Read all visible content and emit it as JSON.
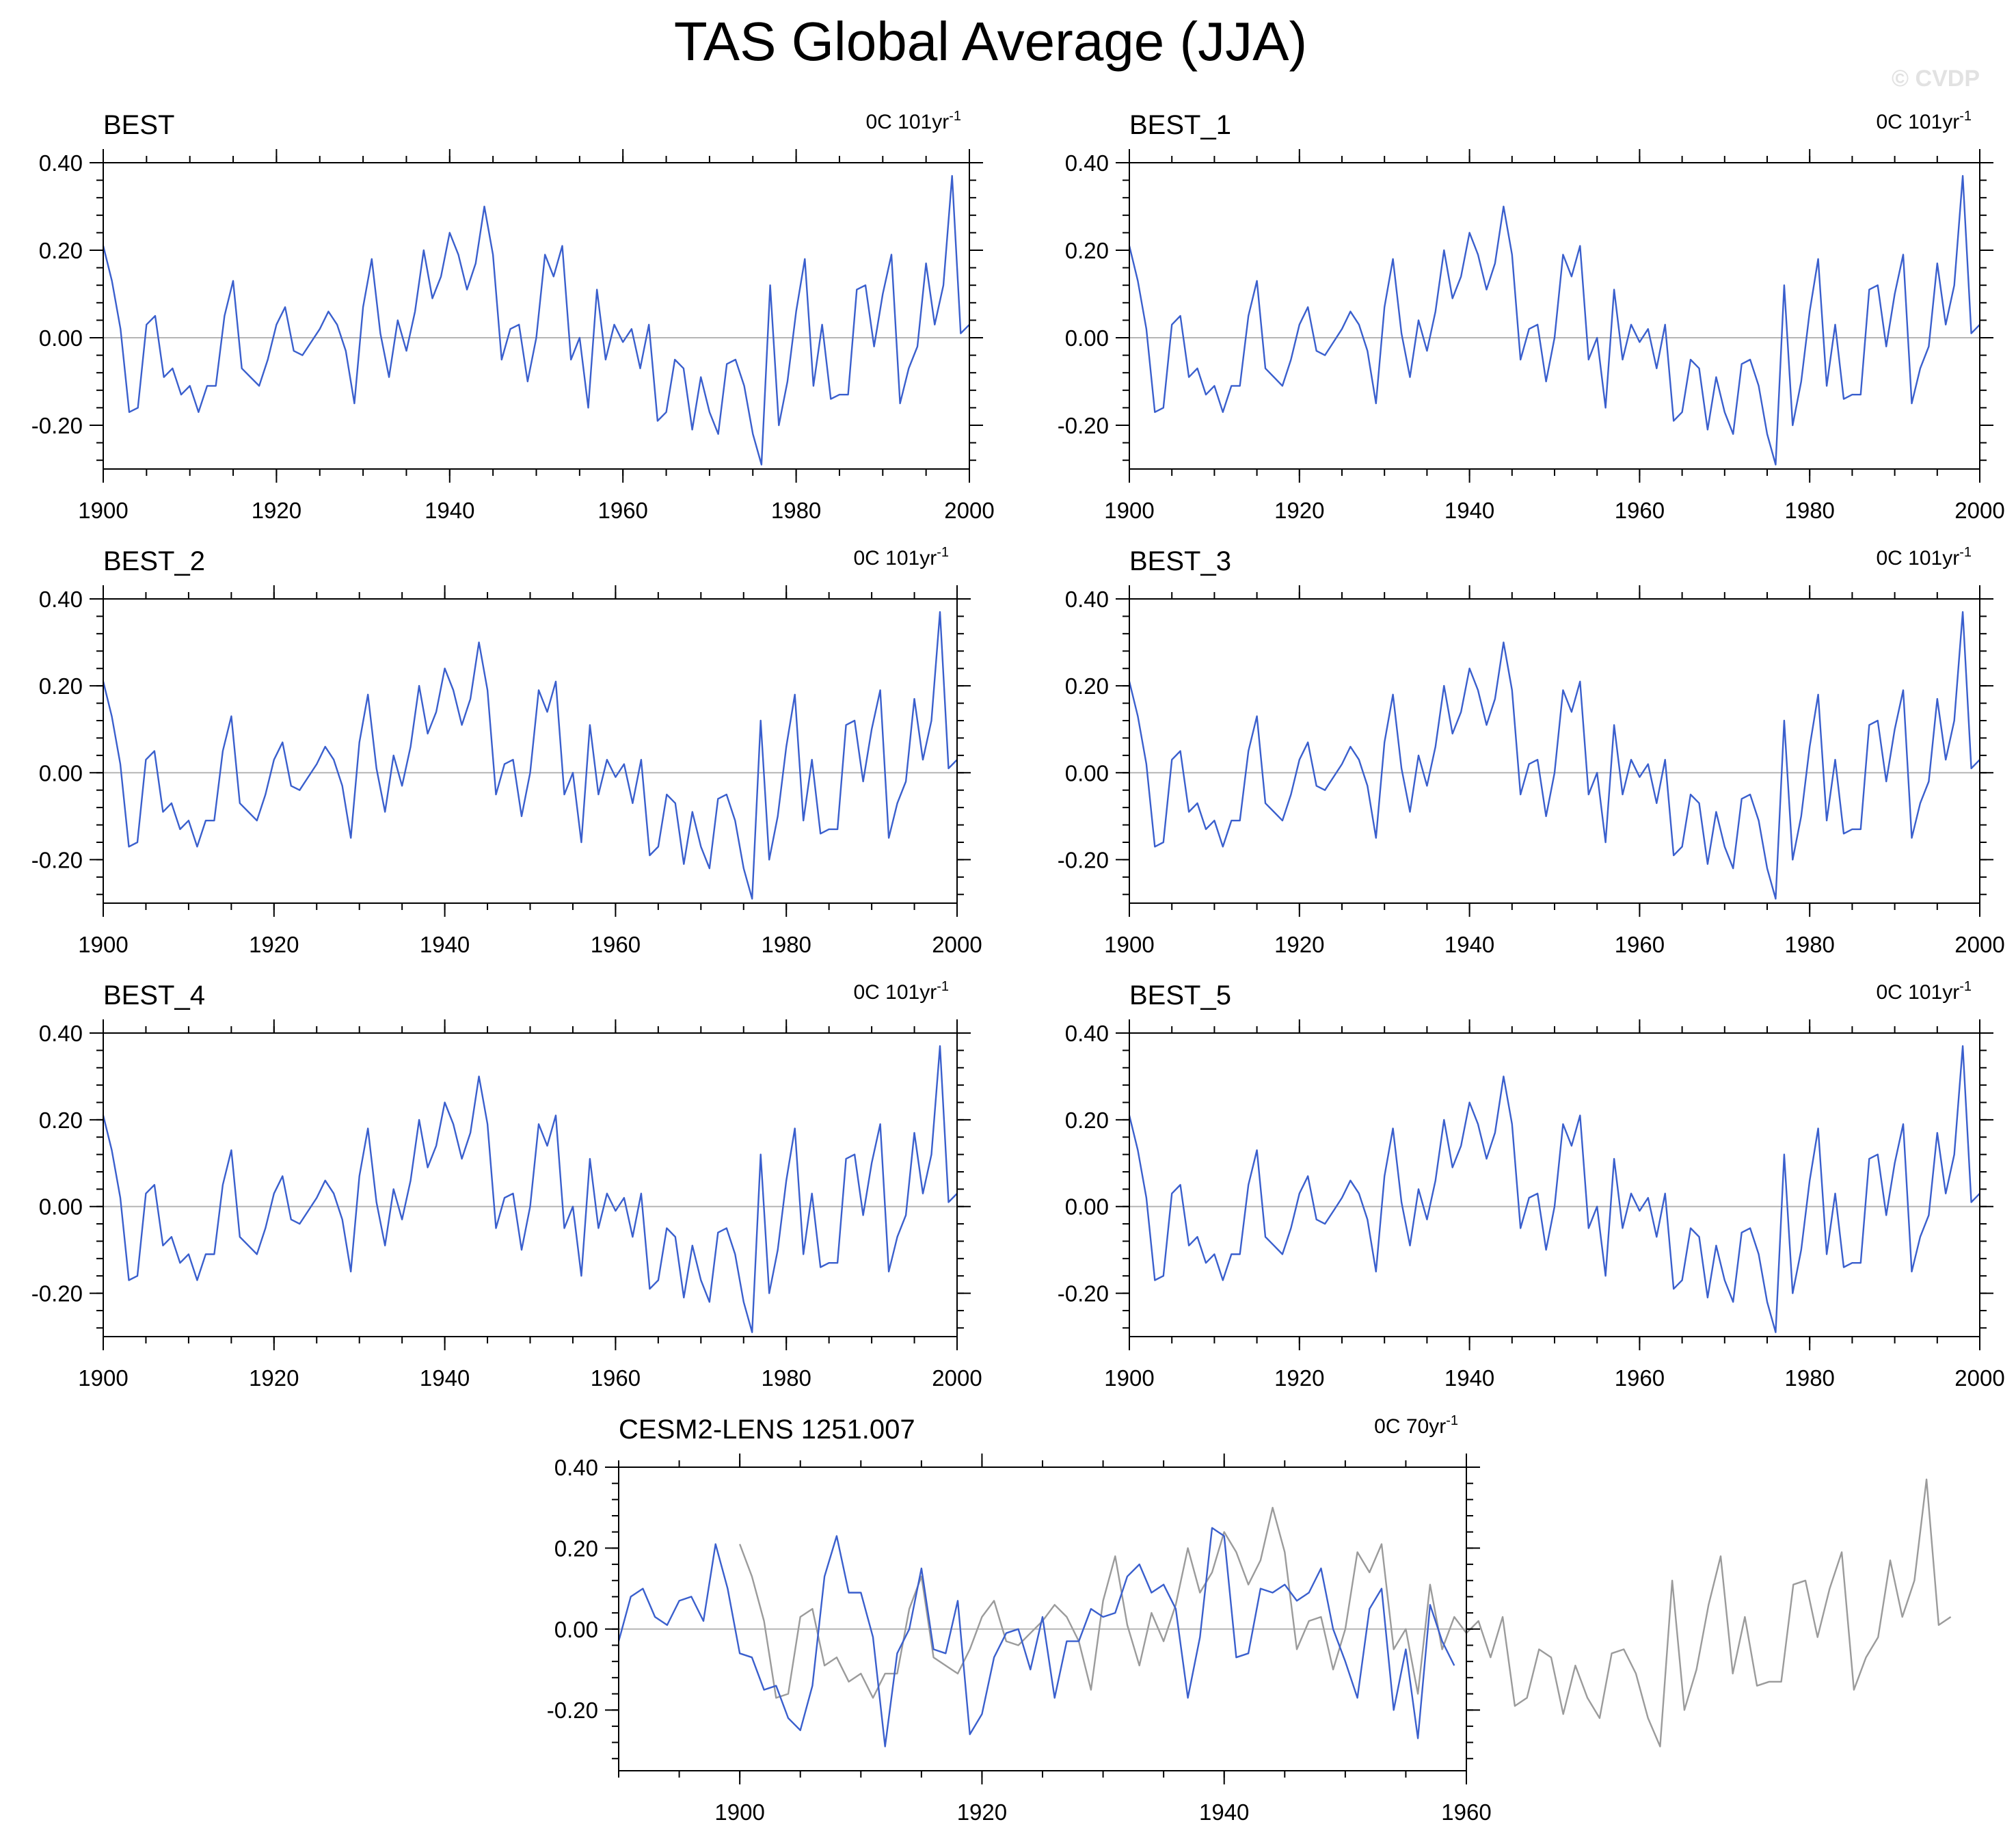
{
  "figure": {
    "title": "TAS Global Average (JJA)",
    "watermark": "© CVDP"
  },
  "colors": {
    "primary_line": "#3a5fcd",
    "reference_line": "#9b9b9b",
    "zero_line": "#b5b5b5",
    "axes": "#000000"
  },
  "chart_data": [
    {
      "type": "line",
      "title": "BEST",
      "trend": {
        "text": "0C 101yr",
        "exp": "-1"
      },
      "xlim": [
        1900,
        2000
      ],
      "ylim": [
        -0.3,
        0.4
      ],
      "xticks": [
        1900,
        1920,
        1940,
        1960,
        1980,
        2000
      ],
      "yticks": [
        "0.40",
        "0.20",
        "0.00",
        "-0.20"
      ],
      "ytick_values": [
        0.4,
        0.2,
        0.0,
        -0.2
      ],
      "series": [
        {
          "name": "BEST",
          "style": "primary",
          "x_start": 1900
        }
      ]
    },
    {
      "type": "line",
      "title": "BEST_1",
      "trend": {
        "text": "0C 101yr",
        "exp": "-1"
      },
      "xlim": [
        1900,
        2000
      ],
      "ylim": [
        -0.3,
        0.4
      ],
      "xticks": [
        1900,
        1920,
        1940,
        1960,
        1980,
        2000
      ],
      "yticks": [
        "0.40",
        "0.20",
        "0.00",
        "-0.20"
      ],
      "ytick_values": [
        0.4,
        0.2,
        0.0,
        -0.2
      ],
      "series": [
        {
          "name": "BEST_1",
          "style": "primary",
          "x_start": 1900
        }
      ]
    },
    {
      "type": "line",
      "title": "BEST_2",
      "trend": {
        "text": "0C 101yr",
        "exp": "-1"
      },
      "xlim": [
        1900,
        2000
      ],
      "ylim": [
        -0.3,
        0.4
      ],
      "xticks": [
        1900,
        1920,
        1940,
        1960,
        1980,
        2000
      ],
      "yticks": [
        "0.40",
        "0.20",
        "0.00",
        "-0.20"
      ],
      "ytick_values": [
        0.4,
        0.2,
        0.0,
        -0.2
      ],
      "series": [
        {
          "name": "BEST_2",
          "style": "primary",
          "x_start": 1900
        }
      ]
    },
    {
      "type": "line",
      "title": "BEST_3",
      "trend": {
        "text": "0C 101yr",
        "exp": "-1"
      },
      "xlim": [
        1900,
        2000
      ],
      "ylim": [
        -0.3,
        0.4
      ],
      "xticks": [
        1900,
        1920,
        1940,
        1960,
        1980,
        2000
      ],
      "yticks": [
        "0.40",
        "0.20",
        "0.00",
        "-0.20"
      ],
      "ytick_values": [
        0.4,
        0.2,
        0.0,
        -0.2
      ],
      "series": [
        {
          "name": "BEST_3",
          "style": "primary",
          "x_start": 1900
        }
      ]
    },
    {
      "type": "line",
      "title": "BEST_4",
      "trend": {
        "text": "0C 101yr",
        "exp": "-1"
      },
      "xlim": [
        1900,
        2000
      ],
      "ylim": [
        -0.3,
        0.4
      ],
      "xticks": [
        1900,
        1920,
        1940,
        1960,
        1980,
        2000
      ],
      "yticks": [
        "0.40",
        "0.20",
        "0.00",
        "-0.20"
      ],
      "ytick_values": [
        0.4,
        0.2,
        0.0,
        -0.2
      ],
      "series": [
        {
          "name": "BEST_4",
          "style": "primary",
          "x_start": 1900
        }
      ]
    },
    {
      "type": "line",
      "title": "BEST_5",
      "trend": {
        "text": "0C 101yr",
        "exp": "-1"
      },
      "xlim": [
        1900,
        2000
      ],
      "ylim": [
        -0.3,
        0.4
      ],
      "xticks": [
        1900,
        1920,
        1940,
        1960,
        1980,
        2000
      ],
      "yticks": [
        "0.40",
        "0.20",
        "0.00",
        "-0.20"
      ],
      "ytick_values": [
        0.4,
        0.2,
        0.0,
        -0.2
      ],
      "series": [
        {
          "name": "BEST_5",
          "style": "primary",
          "x_start": 1900
        }
      ]
    },
    {
      "type": "line",
      "title": "CESM2-LENS 1251.007",
      "trend": {
        "text": "0C 70yr",
        "exp": "-1"
      },
      "xlim": [
        1890,
        1960
      ],
      "ylim": [
        -0.35,
        0.4
      ],
      "xticks": [
        1900,
        1920,
        1940,
        1960
      ],
      "yticks": [
        "0.40",
        "0.20",
        "0.00",
        "-0.20"
      ],
      "ytick_values": [
        0.4,
        0.2,
        0.0,
        -0.2
      ],
      "series": [
        {
          "name": "CESM2-LENS 1251.007",
          "style": "primary",
          "x_start": 1890,
          "values": [
            -0.03,
            0.08,
            0.1,
            0.03,
            0.01,
            0.07,
            0.08,
            0.02,
            0.21,
            0.1,
            -0.06,
            -0.07,
            -0.15,
            -0.14,
            -0.22,
            -0.25,
            -0.14,
            0.13,
            0.23,
            0.09,
            0.09,
            -0.02,
            -0.29,
            -0.06,
            0.0,
            0.15,
            -0.05,
            -0.06,
            0.07,
            -0.26,
            -0.21,
            -0.07,
            -0.01,
            0.0,
            -0.1,
            0.03,
            -0.17,
            -0.03,
            -0.03,
            0.05,
            0.03,
            0.04,
            0.13,
            0.16,
            0.09,
            0.11,
            0.05,
            -0.17,
            -0.02,
            0.25,
            0.23,
            -0.07,
            -0.06,
            0.1,
            0.09,
            0.11,
            0.07,
            0.09,
            0.15,
            0.0,
            -0.08,
            -0.17,
            0.05,
            0.1,
            -0.2,
            -0.05,
            -0.27,
            0.06,
            -0.03,
            -0.09
          ]
        },
        {
          "name": "BEST",
          "style": "reference",
          "x_start": 1900
        }
      ]
    }
  ],
  "shared_series": {
    "BEST": {
      "x_start": 1900,
      "values": [
        0.21,
        0.13,
        0.02,
        -0.17,
        -0.16,
        0.03,
        0.05,
        -0.09,
        -0.07,
        -0.13,
        -0.11,
        -0.17,
        -0.11,
        -0.11,
        0.05,
        0.13,
        -0.07,
        -0.09,
        -0.11,
        -0.05,
        0.03,
        0.07,
        -0.03,
        -0.04,
        -0.01,
        0.02,
        0.06,
        0.03,
        -0.03,
        -0.15,
        0.07,
        0.18,
        0.01,
        -0.09,
        0.04,
        -0.03,
        0.06,
        0.2,
        0.09,
        0.14,
        0.24,
        0.19,
        0.11,
        0.17,
        0.3,
        0.19,
        -0.05,
        0.02,
        0.03,
        -0.1,
        0.0,
        0.19,
        0.14,
        0.21,
        -0.05,
        0.0,
        -0.16,
        0.11,
        -0.05,
        0.03,
        -0.01,
        0.02,
        -0.07,
        0.03,
        -0.19,
        -0.17,
        -0.05,
        -0.07,
        -0.21,
        -0.09,
        -0.17,
        -0.22,
        -0.06,
        -0.05,
        -0.11,
        -0.22,
        -0.29,
        0.12,
        -0.2,
        -0.1,
        0.06,
        0.18,
        -0.11,
        0.03,
        -0.14,
        -0.13,
        -0.13,
        0.11,
        0.12,
        -0.02,
        0.1,
        0.19,
        -0.15,
        -0.07,
        -0.02,
        0.17,
        0.03,
        0.12,
        0.37,
        0.01,
        0.03
      ]
    }
  }
}
